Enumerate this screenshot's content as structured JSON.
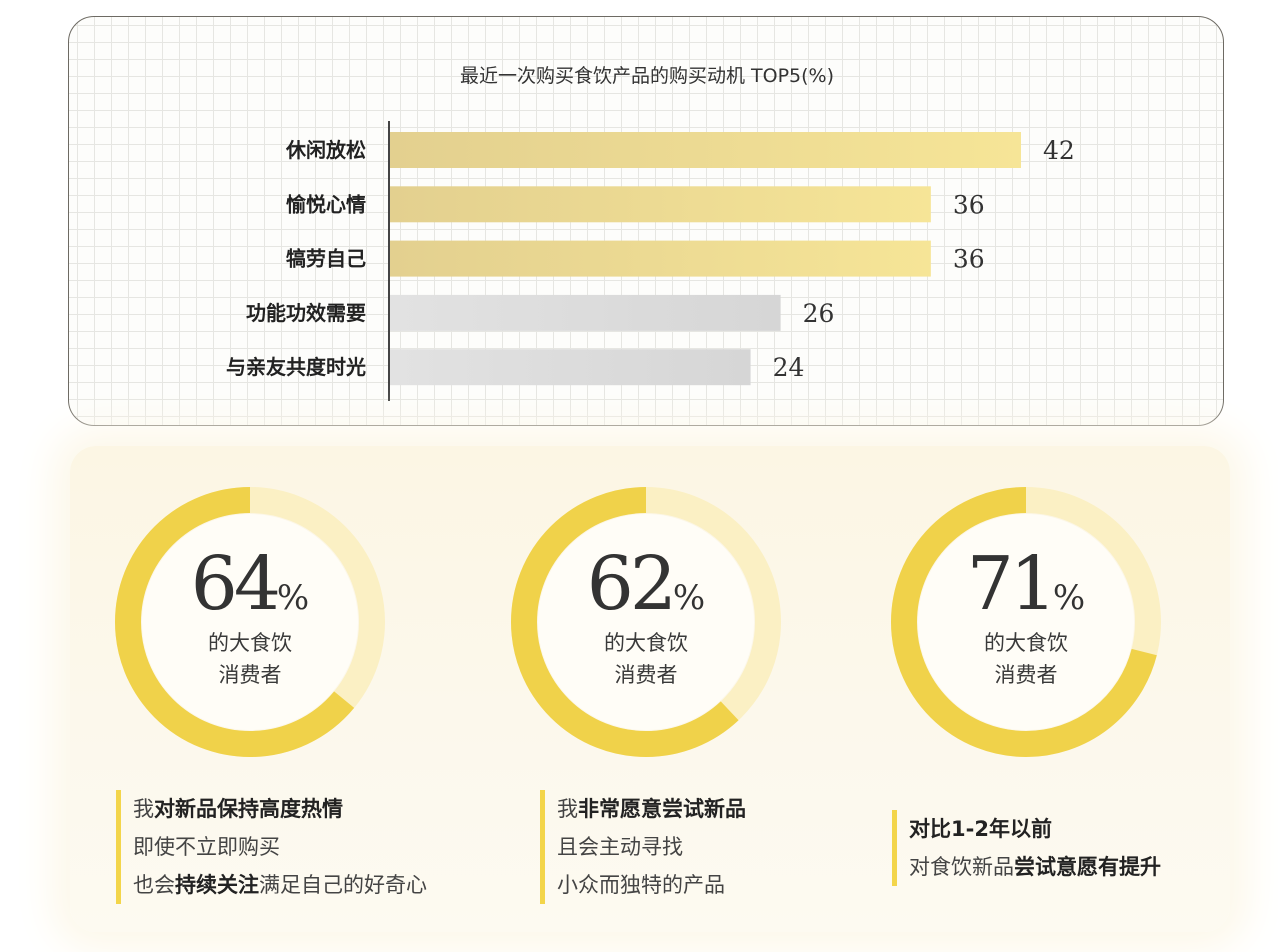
{
  "chart_data": {
    "type": "bar",
    "orientation": "horizontal",
    "title": "最近一次购买食饮产品的购买动机 TOP5(%)",
    "categories": [
      "休闲放松",
      "愉悦心情",
      "犒劳自己",
      "功能功效需要",
      "与亲友共度时光"
    ],
    "values": [
      42,
      36,
      36,
      26,
      24
    ],
    "bar_colors": [
      "#ead98d",
      "#ead98d",
      "#ead98d",
      "#dcdcdc",
      "#dcdcdc"
    ],
    "xlim": [
      0,
      42
    ],
    "grid": true
  },
  "stats": [
    {
      "percent": 64,
      "percent_text": "64",
      "sign": "%",
      "sub_line1": "的大食饮",
      "sub_line2": "消费者",
      "lines": [
        [
          "我",
          "对新品保持高度热情"
        ],
        [
          "即使不立即购买"
        ],
        [
          "也会",
          "持续关注",
          "满足自己的好奇心"
        ]
      ]
    },
    {
      "percent": 62,
      "percent_text": "62",
      "sign": "%",
      "sub_line1": "的大食饮",
      "sub_line2": "消费者",
      "lines": [
        [
          "我",
          "非常愿意尝试新品"
        ],
        [
          "且会主动寻找"
        ],
        [
          "小众而独特的产品"
        ]
      ]
    },
    {
      "percent": 71,
      "percent_text": "71",
      "sign": "%",
      "sub_line1": "的大食饮",
      "sub_line2": "消费者",
      "lines": [
        [
          "",
          "对比1-2年以前"
        ],
        [
          "对食饮新品",
          "尝试意愿有提升"
        ]
      ]
    }
  ],
  "colors": {
    "accent_yellow": "#f0d24a",
    "donut_light": "#fbf0c4",
    "border": "#6d6a63"
  }
}
